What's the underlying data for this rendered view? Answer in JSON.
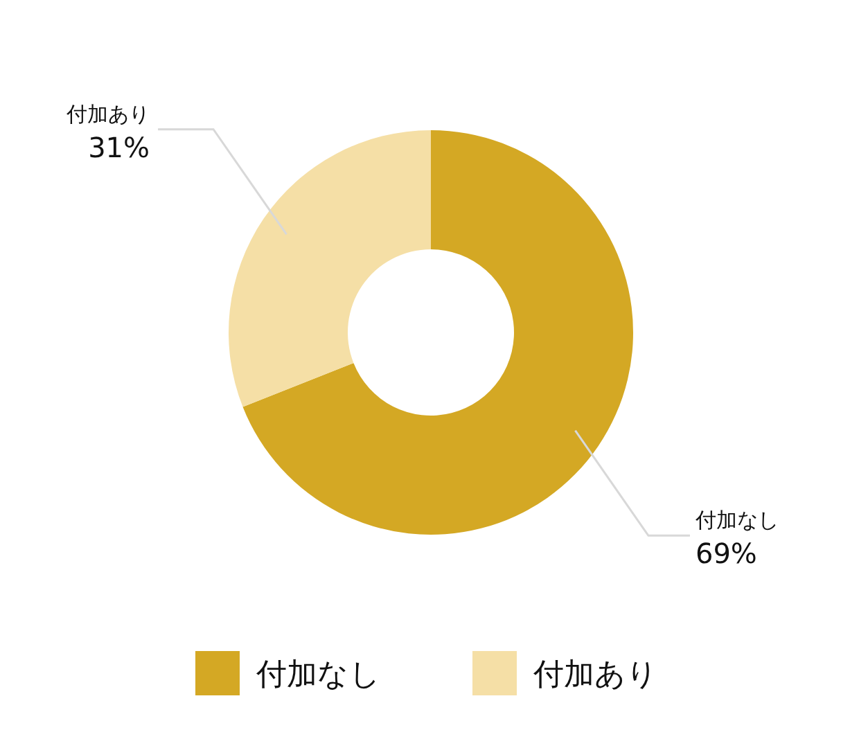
{
  "chart_data": {
    "type": "donut",
    "categories": [
      "付加なし",
      "付加あり"
    ],
    "values": [
      69,
      31
    ],
    "colors": [
      "#d4a824",
      "#f5dfa6"
    ],
    "value_labels": [
      "69%",
      "31%"
    ],
    "legend": "bottom"
  }
}
